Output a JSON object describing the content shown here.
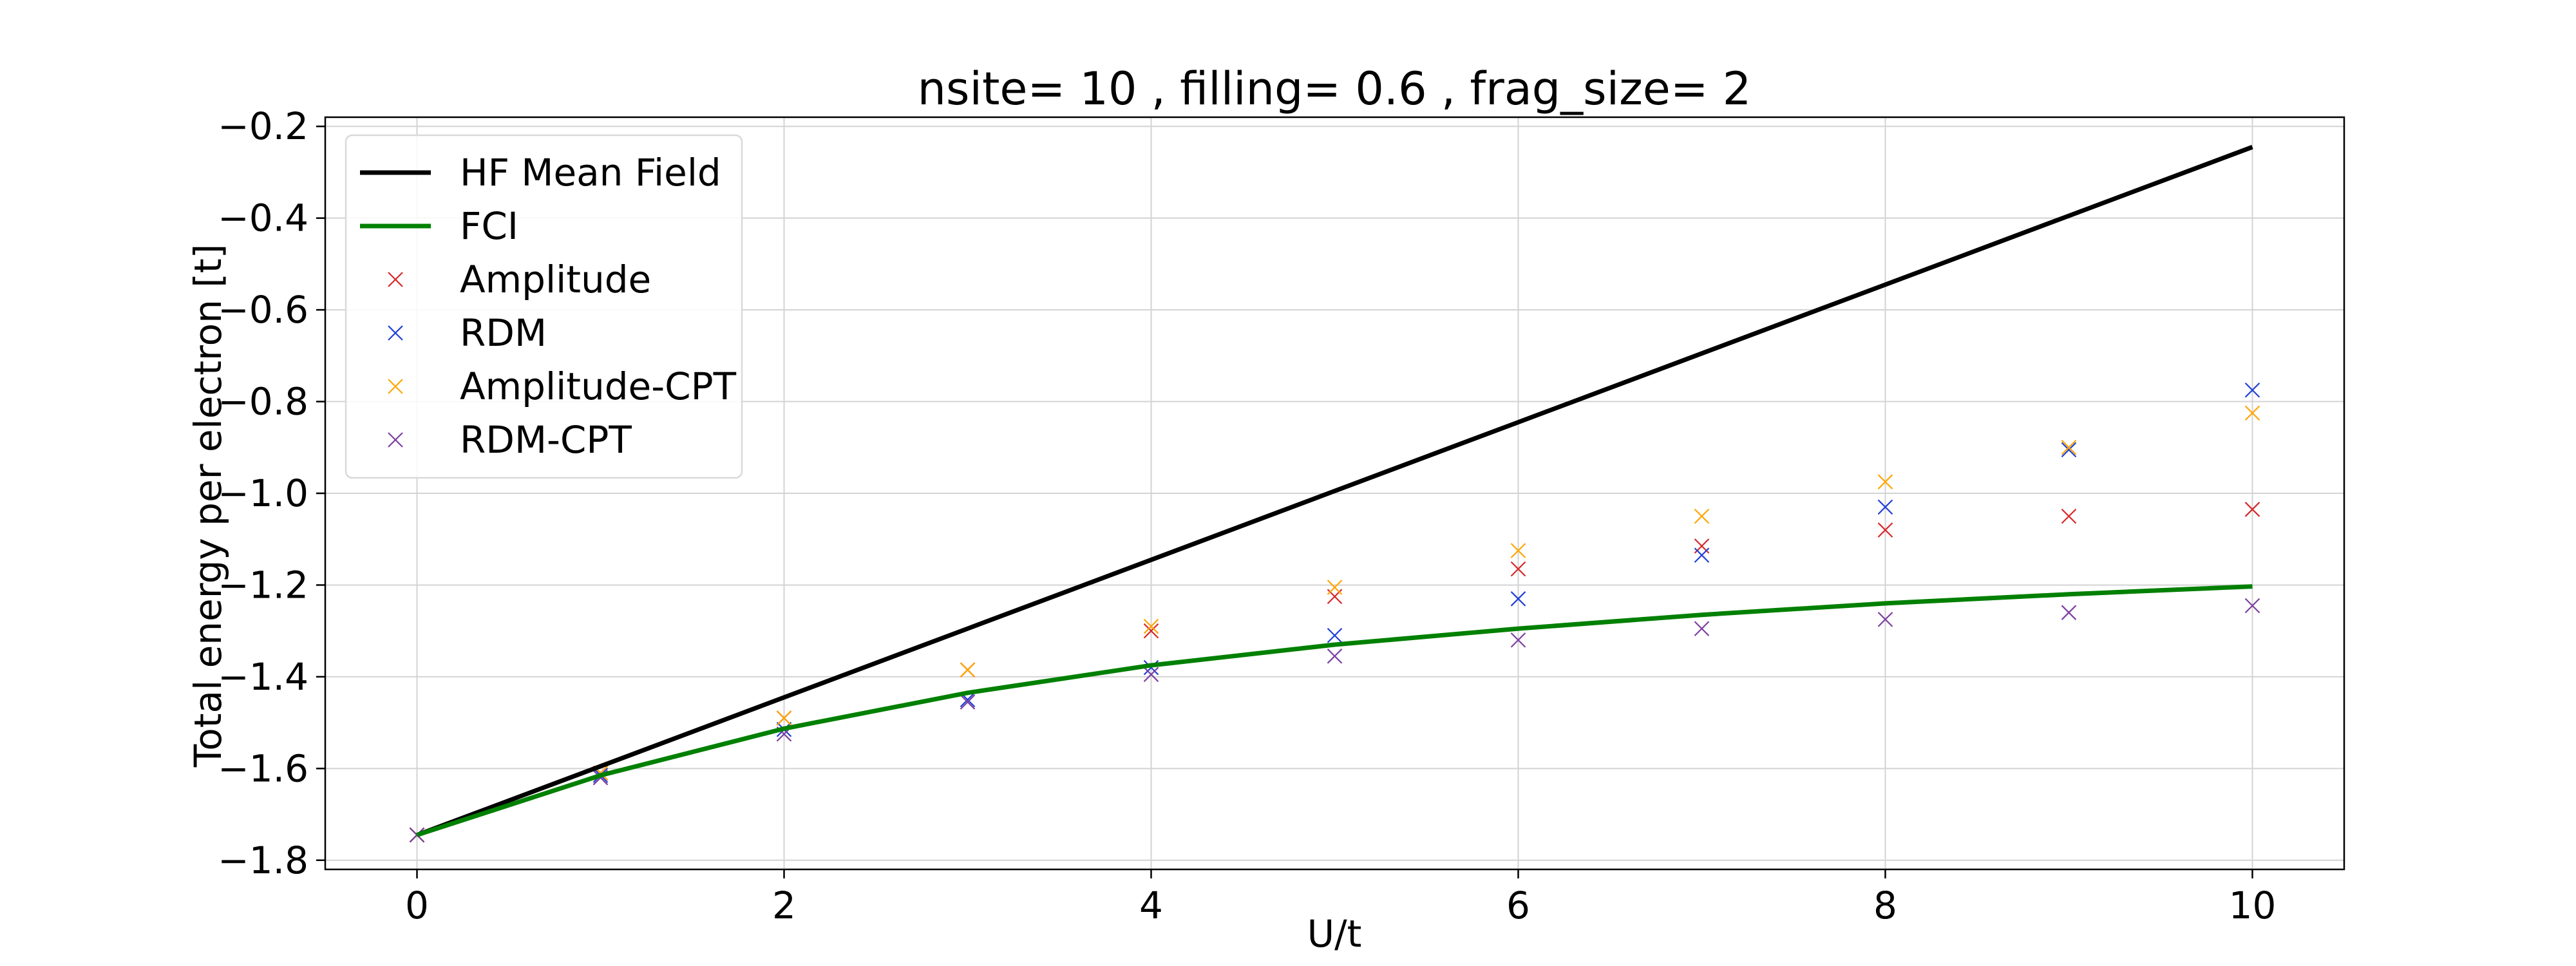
{
  "chart_data": {
    "type": "line",
    "title": "nsite= 10 , filling= 0.6 , frag_size= 2",
    "xlabel": "U/t",
    "ylabel": "Total energy per electron [t]",
    "xlim": [
      -0.5,
      10.5
    ],
    "ylim": [
      -1.82,
      -0.18
    ],
    "xticks": [
      0,
      2,
      4,
      6,
      8,
      10
    ],
    "yticks": [
      -1.8,
      -1.6,
      -1.4,
      -1.2,
      -1.0,
      -0.8,
      -0.6,
      -0.4,
      -0.2
    ],
    "xtick_labels": [
      "0",
      "2",
      "4",
      "6",
      "8",
      "10"
    ],
    "ytick_labels": [
      "−1.8",
      "−1.6",
      "−1.4",
      "−1.2",
      "−1.0",
      "−0.8",
      "−0.6",
      "−0.4",
      "−0.2"
    ],
    "grid": true,
    "legend_position": "top-left",
    "x": [
      0,
      1,
      2,
      3,
      4,
      5,
      6,
      7,
      8,
      9,
      10
    ],
    "series": [
      {
        "name": "HF Mean Field",
        "kind": "line",
        "color": "#000000",
        "values": [
          -1.745,
          -1.595,
          -1.445,
          -1.295,
          -1.145,
          -0.995,
          -0.845,
          -0.695,
          -0.545,
          -0.395,
          -0.245
        ]
      },
      {
        "name": "FCI",
        "kind": "line",
        "color": "#008000",
        "values": [
          -1.745,
          -1.615,
          -1.513,
          -1.435,
          -1.375,
          -1.33,
          -1.295,
          -1.265,
          -1.24,
          -1.22,
          -1.203
        ]
      },
      {
        "name": "Amplitude",
        "kind": "scatter",
        "color": "#d62728",
        "values": [
          -1.745,
          -1.61,
          -1.49,
          -1.385,
          -1.3,
          -1.225,
          -1.165,
          -1.115,
          -1.08,
          -1.05,
          -1.035
        ]
      },
      {
        "name": "RDM",
        "kind": "scatter",
        "color": "#1f3fd6",
        "values": [
          -1.745,
          -1.615,
          -1.515,
          -1.45,
          -1.38,
          -1.31,
          -1.23,
          -1.135,
          -1.03,
          -0.905,
          -0.775
        ]
      },
      {
        "name": "Amplitude-CPT",
        "kind": "scatter",
        "color": "#ffa500",
        "values": [
          -1.745,
          -1.61,
          -1.49,
          -1.385,
          -1.29,
          -1.205,
          -1.125,
          -1.05,
          -0.975,
          -0.9,
          -0.825
        ]
      },
      {
        "name": "RDM-CPT",
        "kind": "scatter",
        "color": "#7b3fa0",
        "values": [
          -1.745,
          -1.62,
          -1.525,
          -1.455,
          -1.395,
          -1.355,
          -1.32,
          -1.295,
          -1.275,
          -1.26,
          -1.245
        ]
      }
    ]
  }
}
